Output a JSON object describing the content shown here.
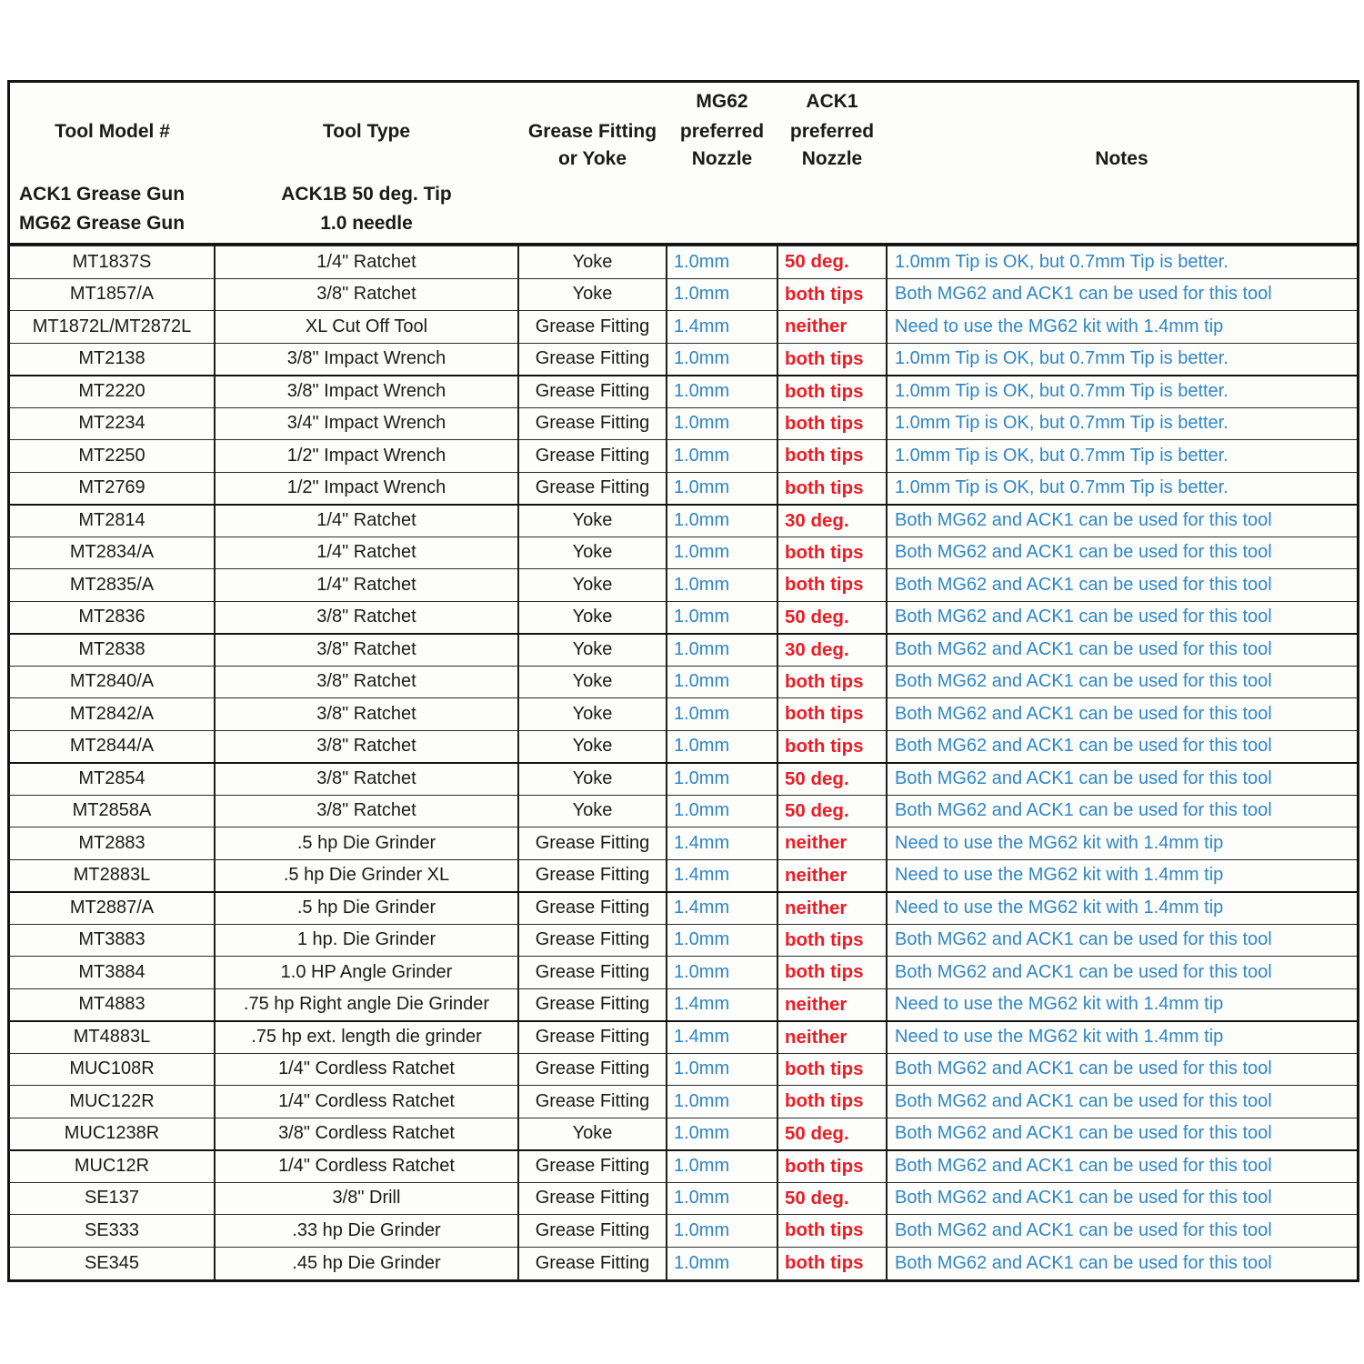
{
  "colors": {
    "blue": "#2e86c5",
    "red": "#ec1c24",
    "text": "#1a1a1a",
    "border": "#141414"
  },
  "header": {
    "col1": {
      "line1": "Tool Model #",
      "line2": "ACK1 Grease Gun",
      "line3": "MG62 Grease Gun"
    },
    "col2": {
      "line1": "Tool Type",
      "line2": "ACK1B 50 deg. Tip",
      "line3": "1.0 needle"
    },
    "col3": {
      "line1": "Grease Fitting",
      "line2": "or Yoke"
    },
    "col4": {
      "line1": "MG62",
      "line2": "preferred",
      "line3": "Nozzle"
    },
    "col5": {
      "line1": "ACK1",
      "line2": "preferred",
      "line3": "Nozzle"
    },
    "col6": {
      "line1": "Notes"
    }
  },
  "rows": [
    {
      "model": "MT1837S",
      "type": "1/4\" Ratchet",
      "fitting": "Yoke",
      "mg62": "1.0mm",
      "ack1": "50 deg.",
      "note": "1.0mm Tip is OK, but 0.7mm Tip is better.",
      "group_end": false
    },
    {
      "model": "MT1857/A",
      "type": "3/8\" Ratchet",
      "fitting": "Yoke",
      "mg62": "1.0mm",
      "ack1": "both tips",
      "note": "Both MG62 and ACK1 can be used for this tool",
      "group_end": false
    },
    {
      "model": "MT1872L/MT2872L",
      "type": "XL Cut Off Tool",
      "fitting": "Grease Fitting",
      "mg62": "1.4mm",
      "ack1": "neither",
      "note": "Need to use the MG62 kit with 1.4mm tip",
      "group_end": false
    },
    {
      "model": "MT2138",
      "type": "3/8\" Impact Wrench",
      "fitting": "Grease Fitting",
      "mg62": "1.0mm",
      "ack1": "both tips",
      "note": "1.0mm Tip is OK, but 0.7mm Tip is better.",
      "group_end": true
    },
    {
      "model": "MT2220",
      "type": "3/8\" Impact Wrench",
      "fitting": "Grease Fitting",
      "mg62": "1.0mm",
      "ack1": "both tips",
      "note": "1.0mm Tip is OK, but 0.7mm Tip is better.",
      "group_end": false
    },
    {
      "model": "MT2234",
      "type": "3/4\" Impact Wrench",
      "fitting": "Grease Fitting",
      "mg62": "1.0mm",
      "ack1": "both tips",
      "note": "1.0mm Tip is OK, but 0.7mm Tip is better.",
      "group_end": false
    },
    {
      "model": "MT2250",
      "type": "1/2\" Impact Wrench",
      "fitting": "Grease Fitting",
      "mg62": "1.0mm",
      "ack1": "both tips",
      "note": "1.0mm Tip is OK, but 0.7mm Tip is better.",
      "group_end": false
    },
    {
      "model": "MT2769",
      "type": "1/2\" Impact Wrench",
      "fitting": "Grease Fitting",
      "mg62": "1.0mm",
      "ack1": "both tips",
      "note": "1.0mm Tip is OK, but 0.7mm Tip is better.",
      "group_end": true
    },
    {
      "model": "MT2814",
      "type": "1/4\" Ratchet",
      "fitting": "Yoke",
      "mg62": "1.0mm",
      "ack1": "30 deg.",
      "note": "Both MG62 and ACK1 can be used for this tool",
      "group_end": false
    },
    {
      "model": "MT2834/A",
      "type": "1/4\" Ratchet",
      "fitting": "Yoke",
      "mg62": "1.0mm",
      "ack1": "both tips",
      "note": "Both MG62 and ACK1 can be used for this tool",
      "group_end": false
    },
    {
      "model": "MT2835/A",
      "type": "1/4\" Ratchet",
      "fitting": "Yoke",
      "mg62": "1.0mm",
      "ack1": "both tips",
      "note": "Both MG62 and ACK1 can be used for this tool",
      "group_end": false
    },
    {
      "model": "MT2836",
      "type": "3/8\" Ratchet",
      "fitting": "Yoke",
      "mg62": "1.0mm",
      "ack1": "50 deg.",
      "note": "Both MG62 and ACK1 can be used for this tool",
      "group_end": true
    },
    {
      "model": "MT2838",
      "type": "3/8\" Ratchet",
      "fitting": "Yoke",
      "mg62": "1.0mm",
      "ack1": "30 deg.",
      "note": "Both MG62 and ACK1 can be used for this tool",
      "group_end": false
    },
    {
      "model": "MT2840/A",
      "type": "3/8\" Ratchet",
      "fitting": "Yoke",
      "mg62": "1.0mm",
      "ack1": "both tips",
      "note": "Both MG62 and ACK1 can be used for this tool",
      "group_end": false
    },
    {
      "model": "MT2842/A",
      "type": "3/8\" Ratchet",
      "fitting": "Yoke",
      "mg62": "1.0mm",
      "ack1": "both tips",
      "note": "Both MG62 and ACK1 can be used for this tool",
      "group_end": false
    },
    {
      "model": "MT2844/A",
      "type": "3/8\" Ratchet",
      "fitting": "Yoke",
      "mg62": "1.0mm",
      "ack1": "both tips",
      "note": "Both MG62 and ACK1 can be used for this tool",
      "group_end": true
    },
    {
      "model": "MT2854",
      "type": "3/8\" Ratchet",
      "fitting": "Yoke",
      "mg62": "1.0mm",
      "ack1": "50 deg.",
      "note": "Both MG62 and ACK1 can be used for this tool",
      "group_end": false
    },
    {
      "model": "MT2858A",
      "type": "3/8\" Ratchet",
      "fitting": "Yoke",
      "mg62": "1.0mm",
      "ack1": "50 deg.",
      "note": "Both MG62 and ACK1 can be used for this tool",
      "group_end": false
    },
    {
      "model": "MT2883",
      "type": ".5 hp  Die Grinder",
      "fitting": "Grease Fitting",
      "mg62": "1.4mm",
      "ack1": "neither",
      "note": "Need to use the MG62 kit with 1.4mm tip",
      "group_end": false
    },
    {
      "model": "MT2883L",
      "type": ".5 hp  Die Grinder XL",
      "fitting": "Grease Fitting",
      "mg62": "1.4mm",
      "ack1": "neither",
      "note": "Need to use the MG62 kit with 1.4mm tip",
      "group_end": true
    },
    {
      "model": "MT2887/A",
      "type": ".5 hp  Die Grinder",
      "fitting": "Grease Fitting",
      "mg62": "1.4mm",
      "ack1": "neither",
      "note": "Need to use the MG62 kit with 1.4mm tip",
      "group_end": false
    },
    {
      "model": "MT3883",
      "type": "1 hp. Die Grinder",
      "fitting": "Grease Fitting",
      "mg62": "1.0mm",
      "ack1": "both tips",
      "note": "Both MG62 and ACK1 can be used for this tool",
      "group_end": false
    },
    {
      "model": "MT3884",
      "type": "1.0 HP Angle Grinder",
      "fitting": "Grease Fitting",
      "mg62": "1.0mm",
      "ack1": "both tips",
      "note": "Both MG62 and ACK1 can be used for this tool",
      "group_end": false
    },
    {
      "model": "MT4883",
      "type": ".75 hp Right angle  Die Grinder",
      "fitting": "Grease Fitting",
      "mg62": "1.4mm",
      "ack1": "neither",
      "note": "Need to use the MG62 kit with 1.4mm tip",
      "group_end": true
    },
    {
      "model": "MT4883L",
      "type": ".75 hp ext. length die grinder",
      "fitting": "Grease Fitting",
      "mg62": "1.4mm",
      "ack1": "neither",
      "note": "Need to use the MG62 kit with 1.4mm tip",
      "group_end": false
    },
    {
      "model": "MUC108R",
      "type": "1/4\" Cordless Ratchet",
      "fitting": "Grease Fitting",
      "mg62": "1.0mm",
      "ack1": "both tips",
      "note": "Both MG62 and ACK1 can be used for this tool",
      "group_end": false
    },
    {
      "model": "MUC122R",
      "type": "1/4\" Cordless Ratchet",
      "fitting": "Grease Fitting",
      "mg62": "1.0mm",
      "ack1": "both tips",
      "note": "Both MG62 and ACK1 can be used for this tool",
      "group_end": false
    },
    {
      "model": "MUC1238R",
      "type": "3/8\" Cordless Ratchet",
      "fitting": "Yoke",
      "mg62": "1.0mm",
      "ack1": "50 deg.",
      "note": "Both MG62 and ACK1 can be used for this tool",
      "group_end": true
    },
    {
      "model": "MUC12R",
      "type": "1/4\" Cordless Ratchet",
      "fitting": "Grease Fitting",
      "mg62": "1.0mm",
      "ack1": "both tips",
      "note": "Both MG62 and ACK1 can be used for this tool",
      "group_end": false
    },
    {
      "model": "SE137",
      "type": "3/8\" Drill",
      "fitting": "Grease Fitting",
      "mg62": "1.0mm",
      "ack1": "50 deg.",
      "note": "Both MG62 and ACK1 can be used for this tool",
      "group_end": false
    },
    {
      "model": "SE333",
      "type": ".33 hp  Die Grinder",
      "fitting": "Grease Fitting",
      "mg62": "1.0mm",
      "ack1": "both tips",
      "note": "Both MG62 and ACK1 can be used for this tool",
      "group_end": false
    },
    {
      "model": "SE345",
      "type": ".45 hp  Die Grinder",
      "fitting": "Grease Fitting",
      "mg62": "1.0mm",
      "ack1": "both tips",
      "note": "Both MG62 and ACK1 can be used for this tool",
      "group_end": false
    }
  ]
}
